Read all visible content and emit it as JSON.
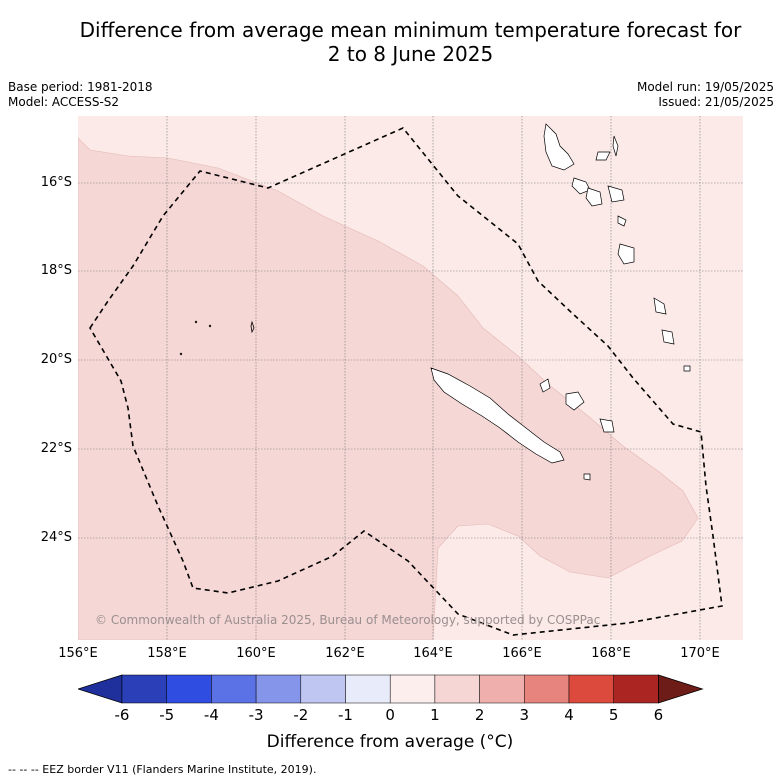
{
  "title_line1": "Difference from average mean minimum temperature forecast for",
  "title_line2": "2 to 8 June 2025",
  "meta_left": {
    "base_period": "Base period: 1981-2018",
    "model": "Model: ACCESS-S2"
  },
  "meta_right": {
    "model_run": "Model run: 19/05/2025",
    "issued": "Issued: 21/05/2025"
  },
  "lat_labels": [
    "16°S",
    "18°S",
    "20°S",
    "22°S",
    "24°S"
  ],
  "lon_labels": [
    "156°E",
    "158°E",
    "160°E",
    "162°E",
    "164°E",
    "166°E",
    "168°E",
    "170°E"
  ],
  "copyright": "© Commonwealth of Australia 2025, Bureau of Meteorology, supported by COSPPac",
  "colorbar": {
    "ticks": [
      "-6",
      "-5",
      "-4",
      "-3",
      "-2",
      "-1",
      "0",
      "1",
      "2",
      "3",
      "4",
      "5",
      "6"
    ],
    "colors": [
      "#1f2f9c",
      "#2a3fb8",
      "#2f4de0",
      "#5b72e6",
      "#8596ea",
      "#bfc6f2",
      "#e8ebfa",
      "#fceeed",
      "#f6d6d4",
      "#efafac",
      "#e8847e",
      "#dc4a3e",
      "#ab2622",
      "#6e1c17"
    ],
    "title": "Difference from average ($^\\circ$C)",
    "title_display": "Difference from average (°C)"
  },
  "map_colors": {
    "zone_0_1": "#fbeae8",
    "zone_1_2": "#f5d7d5"
  },
  "footnote": "--  --  -- EEZ border V11 (Flanders Marine Institute, 2019)."
}
